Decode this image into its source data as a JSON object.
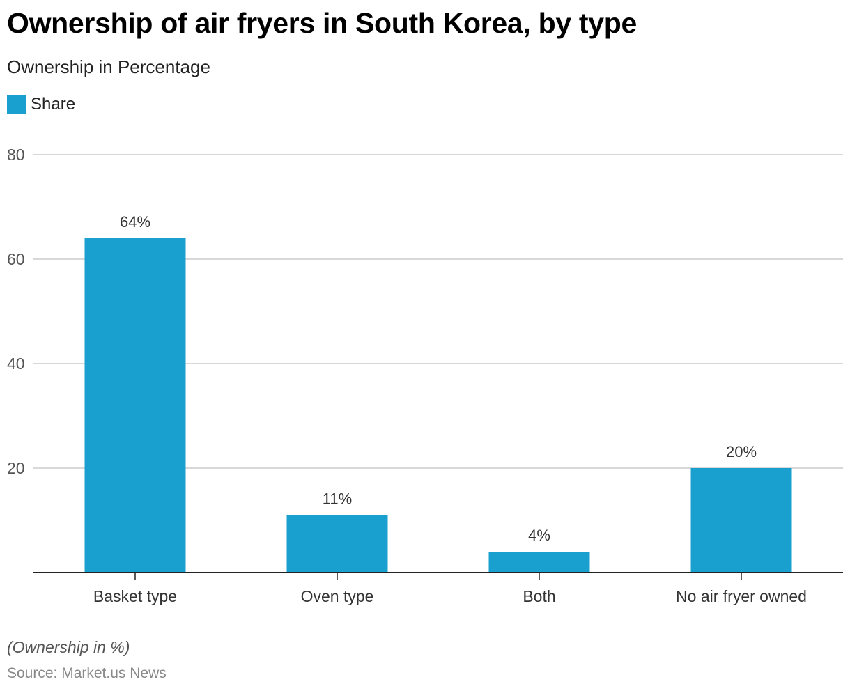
{
  "header": {
    "title": "Ownership of air fryers in South Korea, by type",
    "subtitle": "Ownership in Percentage"
  },
  "legend": {
    "label": "Share"
  },
  "footer": {
    "note": "(Ownership in %)",
    "source": "Source: Market.us News"
  },
  "colors": {
    "bar": "#1aa0cf",
    "grid": "#cccccc",
    "axis": "#222222",
    "tick_text": "#555555"
  },
  "chart_data": {
    "type": "bar",
    "categories": [
      "Basket type",
      "Oven type",
      "Both",
      "No air fryer owned"
    ],
    "series": [
      {
        "name": "Share",
        "values": [
          64,
          11,
          4,
          20
        ]
      }
    ],
    "data_labels": [
      "64%",
      "11%",
      "4%",
      "20%"
    ],
    "yticks": [
      20,
      40,
      60,
      80
    ],
    "ylim": [
      0,
      80
    ],
    "grid": true,
    "legend_position": "top-left"
  }
}
